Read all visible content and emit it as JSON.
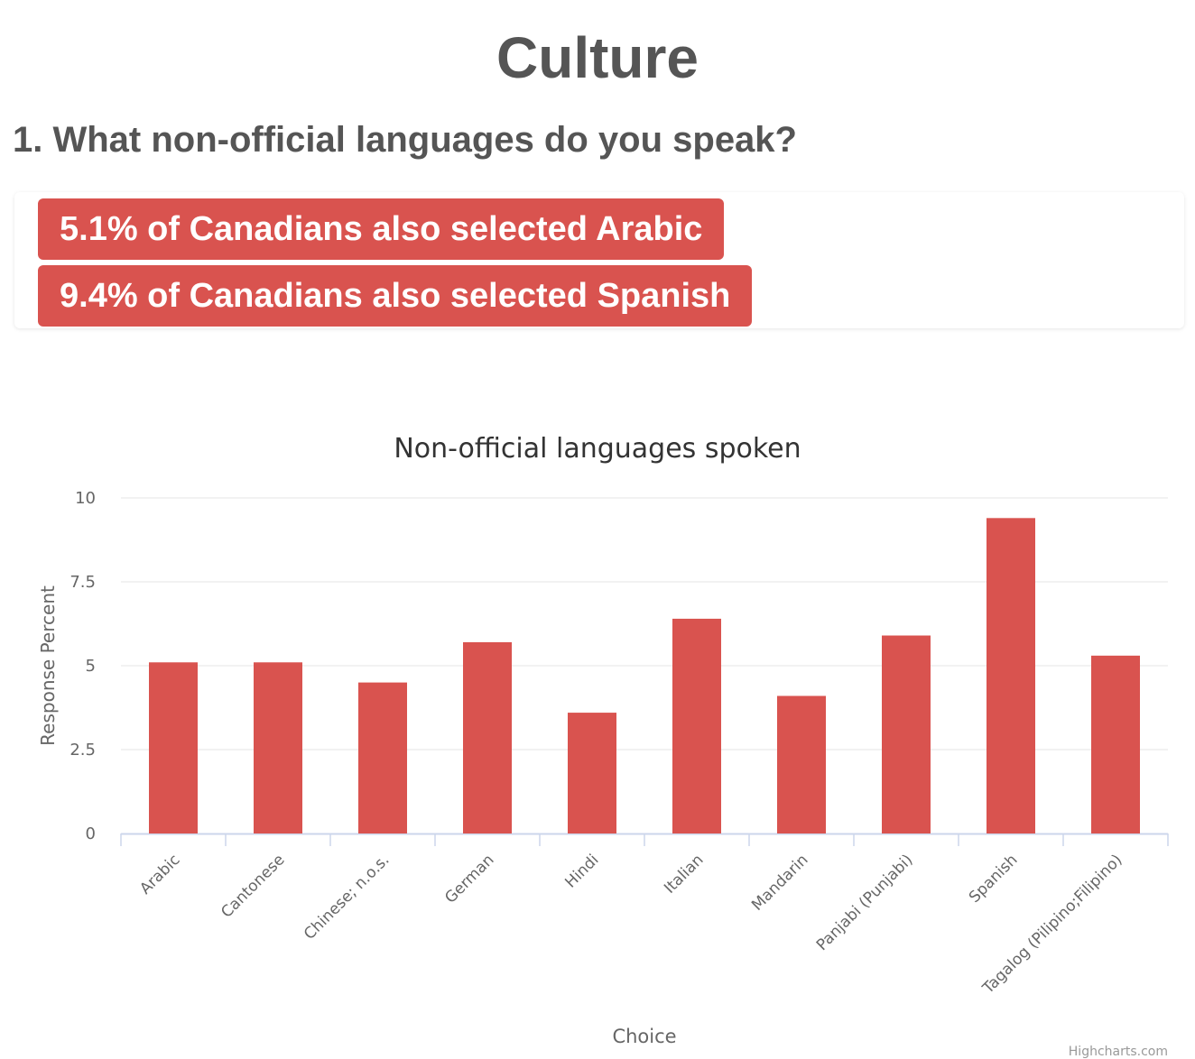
{
  "page": {
    "title": "Culture"
  },
  "question": {
    "text": "1. What non-official languages do you speak?"
  },
  "callouts": [
    "5.1% of Canadians also selected Arabic",
    "9.4% of Canadians also selected Spanish"
  ],
  "colors": {
    "accent": "#d9534f",
    "grid": "#e6e6e6",
    "axis": "#ccd6eb"
  },
  "credit": "Highcharts.com",
  "chart_data": {
    "type": "bar",
    "title": "Non-official languages spoken",
    "xlabel": "Choice",
    "ylabel": "Response Percent",
    "ylim": [
      0,
      10
    ],
    "yticks": [
      0,
      2.5,
      5,
      7.5,
      10
    ],
    "ytick_labels": [
      "0",
      "2.5",
      "5",
      "7.5",
      "10"
    ],
    "grid": true,
    "legend": "none",
    "categories": [
      "Arabic",
      "Cantonese",
      "Chinese; n.o.s.",
      "German",
      "Hindi",
      "Italian",
      "Mandarin",
      "Panjabi (Punjabi)",
      "Spanish",
      "Tagalog (Pilipino;Filipino)"
    ],
    "values": [
      5.1,
      5.1,
      4.5,
      5.7,
      3.6,
      6.4,
      4.1,
      5.9,
      9.4,
      5.3
    ]
  }
}
